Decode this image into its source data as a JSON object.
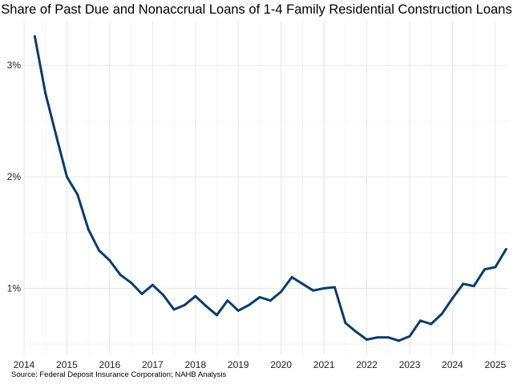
{
  "chart_data": {
    "type": "line",
    "title": "Share of Past Due and Nonaccrual Loans of 1-4 Family Residential Construction Loans",
    "source": "Source: Federal Deposit Insurance Corporation; NAHB Analysis",
    "xlabel": "",
    "ylabel": "",
    "xlim": [
      2014.0,
      2025.3
    ],
    "ylim": [
      0.4,
      3.4
    ],
    "x_ticks": [
      2014,
      2015,
      2016,
      2017,
      2018,
      2019,
      2020,
      2021,
      2022,
      2023,
      2024,
      2025
    ],
    "x_tick_labels": [
      "2014",
      "2015",
      "2016",
      "2017",
      "2018",
      "2019",
      "2020",
      "2021",
      "2022",
      "2023",
      "2024",
      "2025"
    ],
    "y_ticks": [
      1,
      2,
      3
    ],
    "y_tick_labels": [
      "1%",
      "2%",
      "3%"
    ],
    "grid": true,
    "series": [
      {
        "color": "#0b3c6b",
        "x": [
          2014.25,
          2014.5,
          2014.75,
          2015.0,
          2015.25,
          2015.5,
          2015.75,
          2016.0,
          2016.25,
          2016.5,
          2016.75,
          2017.0,
          2017.25,
          2017.5,
          2017.75,
          2018.0,
          2018.25,
          2018.5,
          2018.75,
          2019.0,
          2019.25,
          2019.5,
          2019.75,
          2020.0,
          2020.25,
          2020.5,
          2020.75,
          2021.0,
          2021.25,
          2021.5,
          2021.75,
          2022.0,
          2022.25,
          2022.5,
          2022.75,
          2023.0,
          2023.25,
          2023.5,
          2023.75,
          2024.0,
          2024.25,
          2024.5,
          2024.75,
          2025.0,
          2025.25
        ],
        "y": [
          3.26,
          2.75,
          2.37,
          2.0,
          1.84,
          1.53,
          1.34,
          1.25,
          1.12,
          1.05,
          0.95,
          1.03,
          0.94,
          0.81,
          0.85,
          0.93,
          0.84,
          0.76,
          0.89,
          0.8,
          0.85,
          0.92,
          0.89,
          0.97,
          1.1,
          1.04,
          0.98,
          1.0,
          1.01,
          0.69,
          0.61,
          0.54,
          0.56,
          0.56,
          0.53,
          0.57,
          0.71,
          0.68,
          0.77,
          0.91,
          1.04,
          1.02,
          1.17,
          1.19,
          1.35
        ]
      }
    ]
  }
}
